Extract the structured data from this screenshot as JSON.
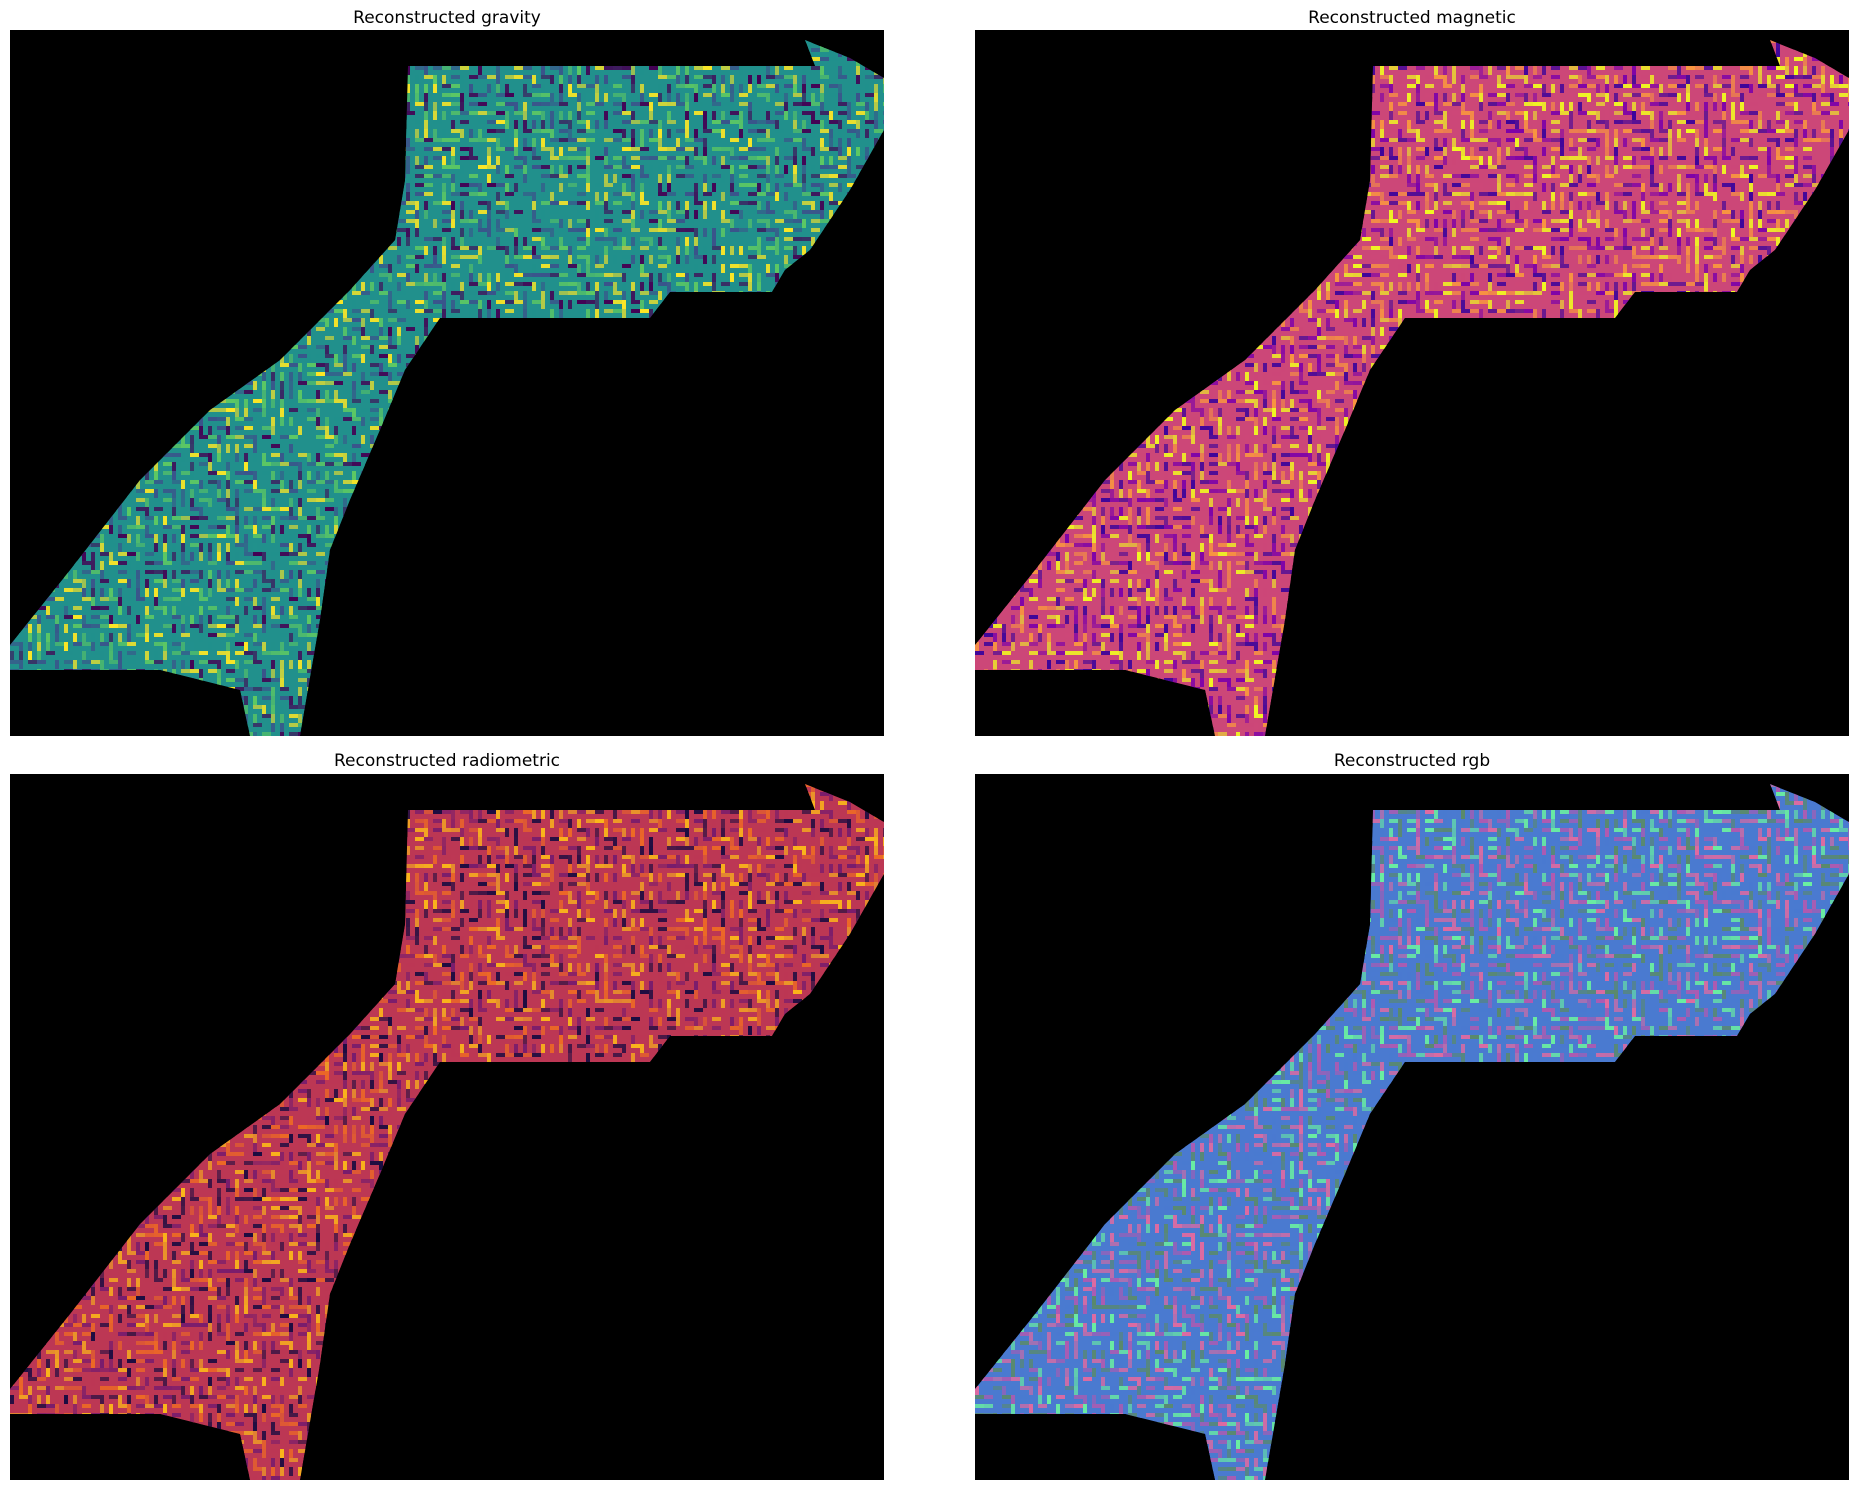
{
  "figure": {
    "background": "#ffffff",
    "panels": [
      {
        "id": "gravity",
        "title": "Reconstructed gravity",
        "colormap": "viridis",
        "colors": [
          "#440154",
          "#3b528b",
          "#21908c",
          "#5dc863",
          "#fde725"
        ]
      },
      {
        "id": "magnetic",
        "title": "Reconstructed magnetic",
        "colormap": "plasma",
        "colors": [
          "#3c049b",
          "#7e03a8",
          "#cc4778",
          "#f89540",
          "#f0f921"
        ]
      },
      {
        "id": "radiometric",
        "title": "Reconstructed radiometric",
        "colormap": "inferno",
        "colors": [
          "#1b0c41",
          "#781c6d",
          "#bc3754",
          "#ed6925",
          "#fbb61a"
        ]
      },
      {
        "id": "rgb",
        "title": "Reconstructed rgb",
        "colormap": "rgb",
        "colors": [
          "#5a8a6a",
          "#b05ab0",
          "#4a7ad0",
          "#6af0a0",
          "#e06aa0"
        ]
      }
    ]
  }
}
